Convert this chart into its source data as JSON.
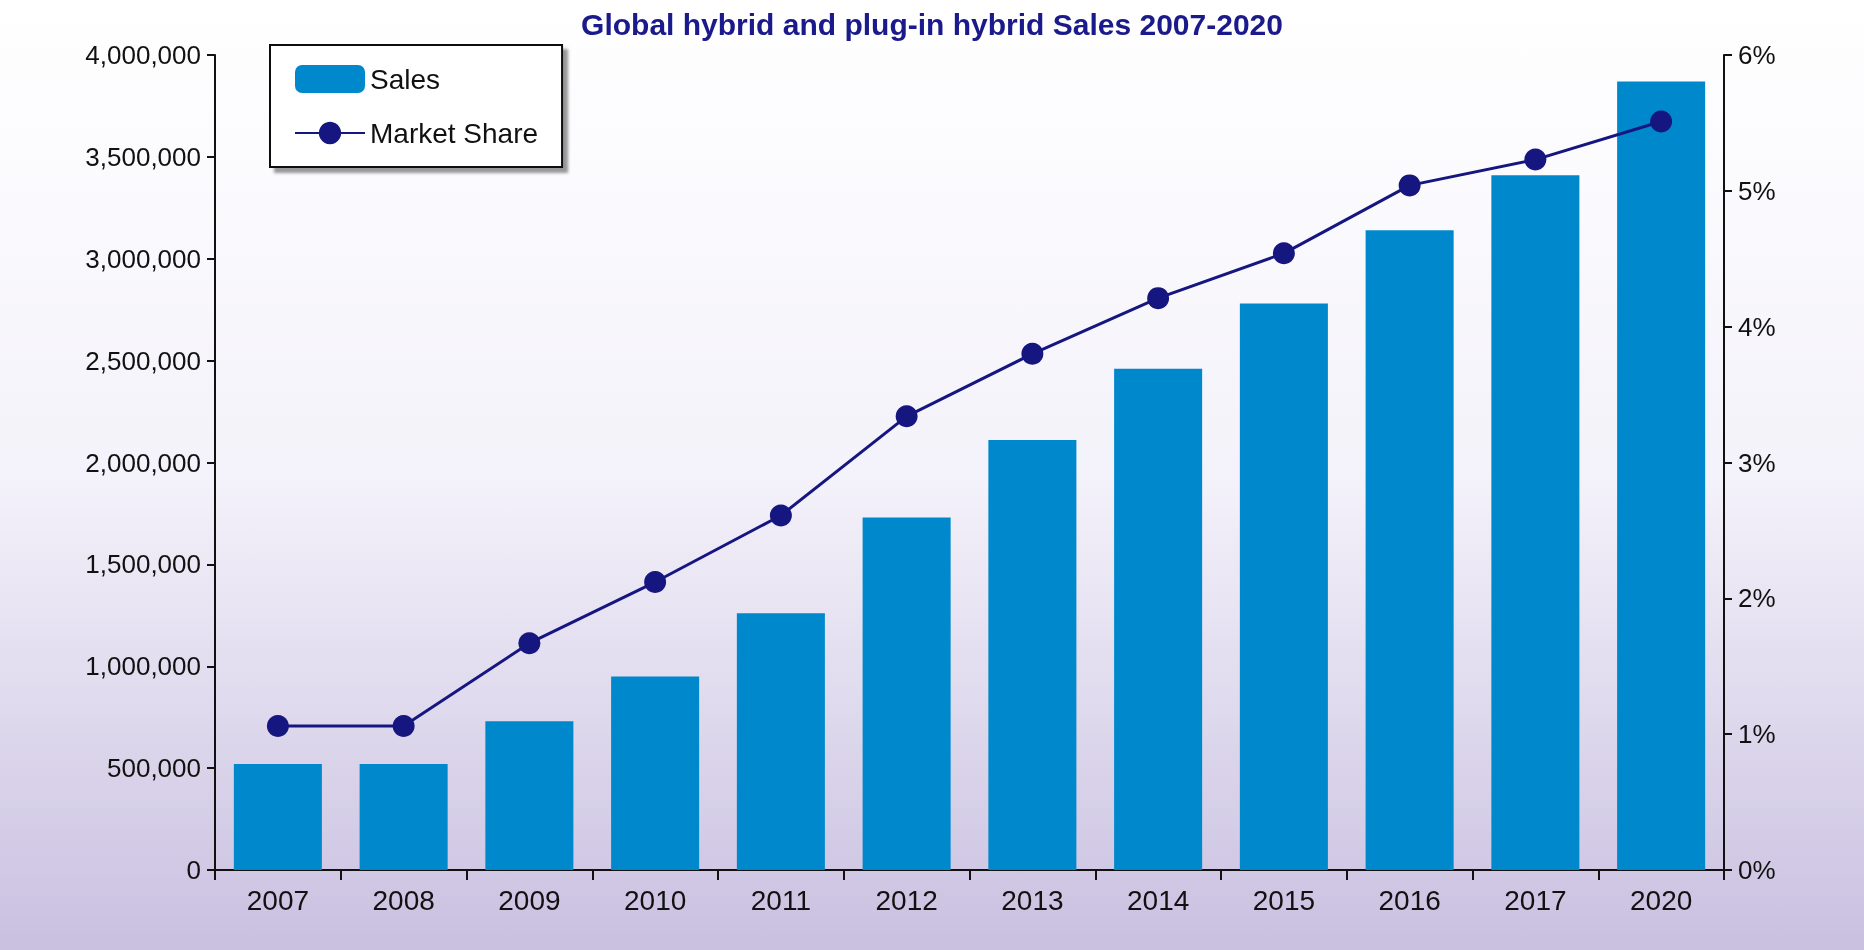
{
  "chart_data": {
    "type": "bar",
    "title": "Global hybrid and plug-in hybrid Sales 2007-2020",
    "categories": [
      "2007",
      "2008",
      "2009",
      "2010",
      "2011",
      "2012",
      "2013",
      "2014",
      "2015",
      "2016",
      "2017",
      "2020"
    ],
    "series": [
      {
        "name": "Sales",
        "color": "#0088cc",
        "values": [
          520000,
          520000,
          730000,
          950000,
          1260000,
          1730000,
          2110000,
          2460000,
          2780000,
          3140000,
          3410000,
          3870000
        ]
      },
      {
        "name": "Market Share",
        "type": "line",
        "axis": "y2",
        "color": "#161680",
        "marker": "circle",
        "values": [
          1.06,
          1.06,
          1.67,
          2.12,
          2.61,
          3.34,
          3.8,
          4.21,
          4.54,
          5.04,
          5.23,
          5.51
        ]
      }
    ],
    "ylim": [
      0,
      4000000
    ],
    "yticks": [
      0,
      {
        "value": 500000,
        "label": "500,000"
      },
      {
        "value": 1000000,
        "label": "1,000,000"
      },
      {
        "value": 1500000,
        "label": "1,500,000"
      },
      {
        "value": 2000000,
        "label": "2,000,000"
      },
      {
        "value": 2500000,
        "label": "2,500,000"
      },
      {
        "value": 3000000,
        "label": "3,000,000"
      },
      {
        "value": 3500000,
        "label": "3,500,000"
      },
      {
        "value": 4000000,
        "label": "4,000,000"
      }
    ],
    "y2lim": [
      0,
      6
    ],
    "y2ticks": [
      {
        "value": 0,
        "label": "0%"
      },
      {
        "value": 1,
        "label": "1%"
      },
      {
        "value": 2,
        "label": "2%"
      },
      {
        "value": 3,
        "label": "3%"
      },
      {
        "value": 4,
        "label": "4%"
      },
      {
        "value": 5,
        "label": "5%"
      },
      {
        "value": 6,
        "label": "6%"
      }
    ],
    "grid": false,
    "legend": "top left"
  }
}
